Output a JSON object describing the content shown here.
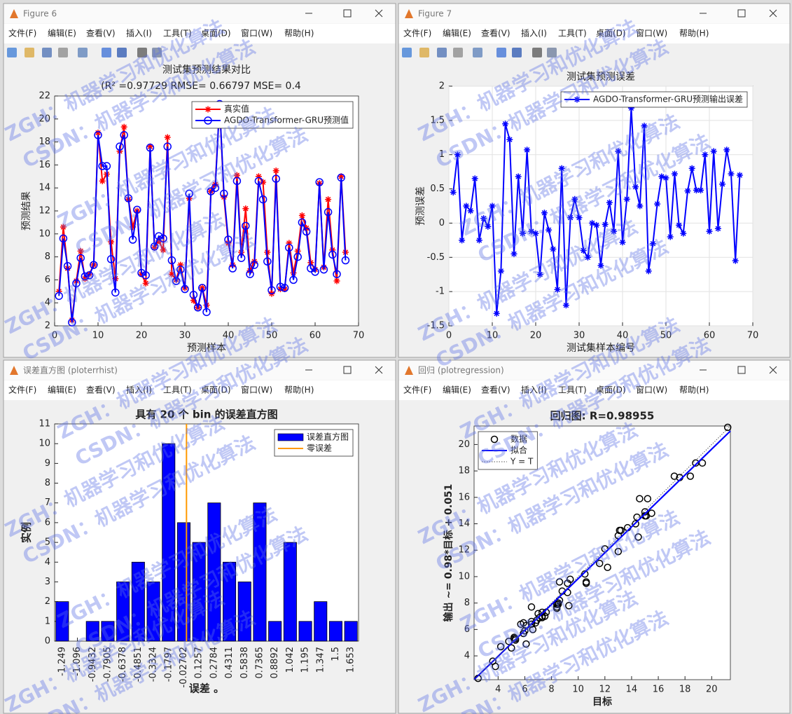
{
  "menu": [
    "文件(F)",
    "编辑(E)",
    "查看(V)",
    "插入(I)",
    "工具(T)",
    "桌面(D)",
    "窗口(W)",
    "帮助(H)"
  ],
  "watermark": [
    "ZGH：机器学习和优化算法",
    "CSDN：机器学习和优化算法"
  ],
  "windows": [
    {
      "title": "Figure 6",
      "chart_data": {
        "type": "line",
        "title": "测试集预测结果对比",
        "subtitle": "(R² =0.97729 RMSE= 0.66797 MSE= 0.4",
        "xlabel": "预测样本",
        "ylabel": "预测结果",
        "x": [
          1,
          2,
          3,
          4,
          5,
          6,
          7,
          8,
          9,
          10,
          11,
          12,
          13,
          14,
          15,
          16,
          17,
          18,
          19,
          20,
          21,
          22,
          23,
          24,
          25,
          26,
          27,
          28,
          29,
          30,
          31,
          32,
          33,
          34,
          35,
          36,
          37,
          38,
          39,
          40,
          41,
          42,
          43,
          44,
          45,
          46,
          47,
          48,
          49,
          50,
          51,
          52,
          53,
          54,
          55,
          56,
          57,
          58,
          59,
          60,
          61,
          62,
          63,
          64,
          65,
          66,
          67
        ],
        "series": [
          {
            "name": "真实值",
            "color": "#ff0000",
            "marker": "*",
            "values": [
              5.0,
              10.6,
              7.0,
              2.5,
              5.9,
              8.5,
              6.1,
              6.5,
              7.3,
              18.8,
              14.6,
              15.2,
              9.3,
              6.1,
              17.2,
              19.3,
              13.0,
              10.6,
              12.0,
              6.5,
              5.7,
              17.6,
              8.8,
              9.4,
              8.6,
              18.4,
              6.5,
              6.0,
              7.3,
              5.3,
              13.1,
              4.2,
              3.6,
              5.3,
              3.8,
              13.7,
              14.3,
              21.2,
              13.2,
              9.2,
              7.3,
              15.1,
              8.4,
              12.2,
              6.8,
              7.6,
              15.0,
              14.5,
              8.4,
              4.8,
              15.5,
              5.2,
              5.2,
              9.2,
              6.6,
              8.5,
              11.6,
              10.5,
              7.5,
              6.9,
              14.4,
              7.1,
              13.0,
              8.6,
              5.9,
              15.0,
              8.4
            ]
          },
          {
            "name": "AGDO-Transformer-GRU预测值",
            "color": "#0000ff",
            "marker": "o",
            "values": [
              4.6,
              9.6,
              7.2,
              2.3,
              5.7,
              7.9,
              6.3,
              6.4,
              7.3,
              18.6,
              15.9,
              15.9,
              7.8,
              4.9,
              17.6,
              18.6,
              13.1,
              9.5,
              12.1,
              6.6,
              6.4,
              17.5,
              8.9,
              9.8,
              9.6,
              17.6,
              7.7,
              5.9,
              6.9,
              5.2,
              13.5,
              4.7,
              3.6,
              5.3,
              3.2,
              13.7,
              14.0,
              21.3,
              13.5,
              9.5,
              7.0,
              14.6,
              7.9,
              10.7,
              6.5,
              7.3,
              14.6,
              13.0,
              7.6,
              5.1,
              14.8,
              5.4,
              5.3,
              8.8,
              6.0,
              8.0,
              11.0,
              10.2,
              7.0,
              6.7,
              14.5,
              6.9,
              11.9,
              8.2,
              6.5,
              14.9,
              7.7
            ]
          }
        ],
        "xlim": [
          0,
          70
        ],
        "xticks": [
          0,
          10,
          20,
          30,
          40,
          50,
          60,
          70
        ],
        "ylim": [
          2,
          22
        ],
        "yticks": [
          2,
          4,
          6,
          8,
          10,
          12,
          14,
          16,
          18,
          20,
          22
        ],
        "grid": false,
        "legend": "upper right"
      }
    },
    {
      "title": "Figure 7",
      "chart_data": {
        "type": "line",
        "title": "测试集预测误差",
        "xlabel": "测试集样本编号",
        "ylabel": "预测误差",
        "x": [
          1,
          2,
          3,
          4,
          5,
          6,
          7,
          8,
          9,
          10,
          11,
          12,
          13,
          14,
          15,
          16,
          17,
          18,
          19,
          20,
          21,
          22,
          23,
          24,
          25,
          26,
          27,
          28,
          29,
          30,
          31,
          32,
          33,
          34,
          35,
          36,
          37,
          38,
          39,
          40,
          41,
          42,
          43,
          44,
          45,
          46,
          47,
          48,
          49,
          50,
          51,
          52,
          53,
          54,
          55,
          56,
          57,
          58,
          59,
          60,
          61,
          62,
          63,
          64,
          65,
          66,
          67
        ],
        "series": [
          {
            "name": "AGDO-Transformer-GRU预测输出误差",
            "color": "#0000ff",
            "marker": "*",
            "values": [
              0.45,
              1.0,
              -0.25,
              0.25,
              0.18,
              0.65,
              -0.25,
              0.07,
              -0.05,
              0.25,
              -1.32,
              -0.7,
              1.45,
              1.22,
              -0.45,
              0.68,
              -0.15,
              1.07,
              -0.12,
              -0.15,
              -0.75,
              0.15,
              -0.1,
              -0.38,
              -0.97,
              0.8,
              -1.2,
              0.08,
              0.35,
              0.08,
              -0.4,
              -0.5,
              0.0,
              -0.03,
              -0.62,
              -0.02,
              0.3,
              -0.12,
              1.05,
              -0.28,
              0.35,
              1.68,
              0.53,
              0.25,
              1.42,
              -0.7,
              -0.3,
              0.28,
              0.68,
              0.66,
              -0.2,
              0.72,
              -0.03,
              -0.15,
              0.47,
              0.8,
              0.48,
              0.48,
              1.0,
              -0.12,
              1.05,
              -0.08,
              0.57,
              1.07,
              0.72,
              -0.55,
              0.7
            ]
          }
        ],
        "xlim": [
          0,
          70
        ],
        "xticks": [
          0,
          10,
          20,
          30,
          40,
          50,
          60,
          70
        ],
        "ylim": [
          -1.5,
          2
        ],
        "yticks": [
          -1.5,
          -1,
          -0.5,
          0,
          0.5,
          1,
          1.5,
          2
        ],
        "grid": true,
        "legend": "upper right"
      }
    },
    {
      "title": "误差直方图 (ploterrhist)",
      "chart_data": {
        "type": "bar",
        "title": "具有 20 个 bin 的误差直方图",
        "xlabel": "误差 。",
        "ylabel": "实例",
        "categories": [
          "-1.249",
          "-1.096",
          "-0.9432",
          "-0.7905",
          "-0.6378",
          "-0.4851",
          "-0.3324",
          "-0.1797",
          "-0.02702",
          "0.1257",
          "0.2784",
          "0.4311",
          "0.5838",
          "0.7365",
          "0.8892",
          "1.042",
          "1.195",
          "1.347",
          "1.5",
          "1.653"
        ],
        "series": [
          {
            "name": "误差直方图",
            "color": "#0000ff",
            "values": [
              2,
              0,
              1,
              1,
              3,
              4,
              3,
              10,
              6,
              5,
              7,
              4,
              3,
              7,
              1,
              5,
              1,
              2,
              1,
              1
            ]
          }
        ],
        "reference": {
          "name": "零误差",
          "color": "#ff9900",
          "value": 0
        },
        "ylim": [
          0,
          11
        ],
        "yticks": [
          0,
          1,
          2,
          3,
          4,
          5,
          6,
          7,
          8,
          9,
          10,
          11
        ],
        "grid": false,
        "legend": "upper right"
      }
    },
    {
      "title": "回归 (plotregression)",
      "chart_data": {
        "type": "scatter",
        "title": "回归图: R=0.98955",
        "xlabel": "目标",
        "ylabel": "输出 ~= 0.98*目标 + 0.051",
        "series": [
          {
            "name": "数据",
            "color": "#000000",
            "marker": "o",
            "x": [
              5.0,
              10.6,
              7.0,
              2.5,
              5.9,
              8.5,
              6.1,
              6.5,
              7.3,
              18.8,
              14.6,
              15.2,
              9.3,
              6.1,
              17.2,
              19.3,
              13.0,
              10.6,
              12.0,
              6.5,
              5.7,
              17.6,
              8.8,
              9.4,
              8.6,
              18.4,
              6.5,
              6.0,
              7.3,
              5.3,
              13.1,
              4.2,
              3.6,
              5.3,
              3.8,
              13.7,
              14.3,
              21.2,
              13.2,
              9.2,
              7.3,
              15.1,
              8.4,
              12.2,
              6.8,
              7.6,
              15.0,
              14.5,
              8.4,
              4.8,
              15.5,
              5.2,
              5.2,
              9.2,
              6.6,
              8.5,
              11.6,
              10.5,
              7.5,
              6.9,
              14.4,
              7.1,
              13.0,
              8.6,
              5.9,
              15.0,
              8.4
            ],
            "values": [
              4.6,
              9.6,
              7.2,
              2.3,
              5.7,
              7.9,
              6.3,
              6.4,
              7.3,
              18.6,
              15.9,
              15.9,
              7.8,
              4.9,
              17.6,
              18.6,
              13.1,
              9.5,
              12.1,
              6.6,
              6.4,
              17.5,
              8.9,
              9.8,
              9.6,
              17.6,
              7.7,
              5.9,
              6.9,
              5.2,
              13.5,
              4.7,
              3.6,
              5.3,
              3.2,
              13.7,
              14.0,
              21.3,
              13.5,
              9.5,
              7.0,
              14.6,
              7.9,
              10.7,
              6.5,
              7.3,
              14.6,
              13.0,
              7.6,
              5.1,
              14.8,
              5.4,
              5.3,
              8.8,
              6.0,
              8.0,
              11.0,
              10.2,
              7.0,
              6.7,
              14.5,
              6.9,
              11.9,
              8.2,
              6.5,
              14.9,
              7.7
            ]
          }
        ],
        "fit": {
          "name": "拟合",
          "color": "#0000ff",
          "slope": 0.98,
          "intercept": 0.051
        },
        "identity": {
          "name": "Y = T",
          "color": "#555555"
        },
        "xlim": [
          2.2,
          21.4
        ],
        "xticks": [
          4,
          6,
          8,
          10,
          12,
          14,
          16,
          18,
          20
        ],
        "ylim": [
          2.2,
          21.4
        ],
        "yticks": [
          4,
          6,
          8,
          10,
          12,
          14,
          16,
          18,
          20
        ],
        "grid": false,
        "legend": "upper left"
      }
    }
  ]
}
